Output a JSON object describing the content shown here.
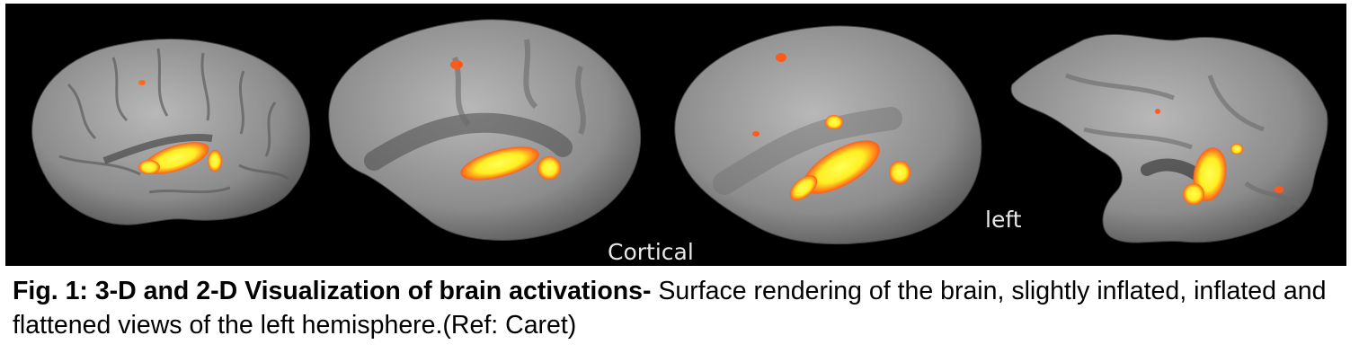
{
  "figure": {
    "panels": [
      {
        "view": "surface rendering",
        "label": ""
      },
      {
        "view": "slightly inflated",
        "label": ""
      },
      {
        "view": "inflated",
        "label": "Cortical"
      },
      {
        "view": "flattened",
        "label": "left"
      }
    ],
    "colors": {
      "background": "#000000",
      "surface": "#9a9a9a",
      "activation_core": "#ffff33",
      "activation_edge": "#ff5a1a"
    }
  },
  "caption": {
    "bold": "Fig. 1: 3-D and 2-D Visualization of brain activations-",
    "text": " Surface rendering of the brain, slightly inflated, inflated and flattened views of the left hemisphere.(Ref: Caret)"
  }
}
